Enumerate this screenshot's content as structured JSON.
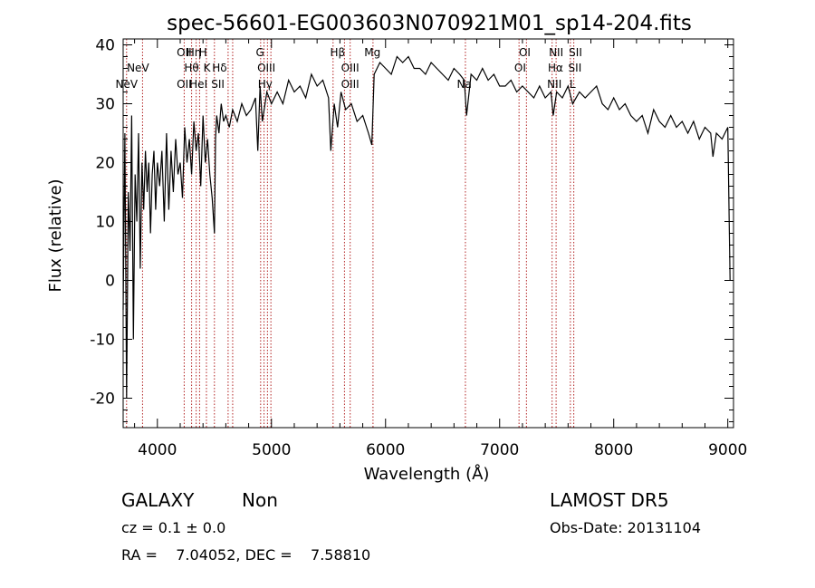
{
  "chart_data": {
    "type": "line",
    "title": "spec-56601-EG003603N070921M01_sp14-204.fits",
    "xlabel": "Wavelength (Å)",
    "ylabel": "Flux (relative)",
    "xlim": [
      3700,
      9050
    ],
    "ylim": [
      -25,
      41
    ],
    "xticks": [
      4000,
      5000,
      6000,
      7000,
      8000,
      9000
    ],
    "yticks": [
      -20,
      -10,
      0,
      10,
      20,
      30,
      40
    ],
    "grid": false,
    "legend": "none",
    "series": [
      {
        "name": "",
        "x": [
          3700,
          3715,
          3730,
          3745,
          3760,
          3775,
          3790,
          3805,
          3820,
          3835,
          3850,
          3865,
          3880,
          3895,
          3910,
          3925,
          3940,
          3955,
          3970,
          3985,
          4000,
          4020,
          4040,
          4060,
          4080,
          4100,
          4120,
          4140,
          4160,
          4180,
          4200,
          4220,
          4240,
          4260,
          4280,
          4300,
          4320,
          4340,
          4360,
          4380,
          4400,
          4420,
          4440,
          4460,
          4480,
          4500,
          4510,
          4520,
          4540,
          4560,
          4580,
          4600,
          4630,
          4660,
          4700,
          4740,
          4780,
          4820,
          4860,
          4880,
          4900,
          4920,
          4960,
          5000,
          5050,
          5100,
          5150,
          5200,
          5250,
          5300,
          5350,
          5400,
          5450,
          5500,
          5520,
          5550,
          5580,
          5610,
          5650,
          5700,
          5750,
          5800,
          5850,
          5880,
          5900,
          5950,
          6000,
          6050,
          6100,
          6150,
          6200,
          6250,
          6300,
          6350,
          6400,
          6450,
          6500,
          6550,
          6600,
          6650,
          6690,
          6710,
          6750,
          6800,
          6850,
          6900,
          6950,
          7000,
          7050,
          7100,
          7150,
          7200,
          7250,
          7300,
          7350,
          7400,
          7450,
          7470,
          7500,
          7550,
          7600,
          7640,
          7700,
          7750,
          7800,
          7850,
          7900,
          7950,
          8000,
          8050,
          8100,
          8150,
          8200,
          8250,
          8300,
          8350,
          8400,
          8450,
          8500,
          8550,
          8600,
          8650,
          8700,
          8750,
          8800,
          8850,
          8870,
          8900,
          8950,
          9000,
          9020
        ],
        "values": [
          -5,
          25,
          -20,
          15,
          5,
          28,
          -10,
          18,
          10,
          25,
          2,
          20,
          12,
          22,
          15,
          20,
          8,
          18,
          22,
          12,
          20,
          16,
          22,
          10,
          25,
          12,
          22,
          15,
          24,
          18,
          20,
          14,
          26,
          20,
          24,
          18,
          27,
          22,
          25,
          16,
          28,
          20,
          24,
          18,
          14,
          8,
          24,
          28,
          25,
          30,
          27,
          28,
          26,
          29,
          27,
          30,
          28,
          29,
          31,
          22,
          33,
          27,
          32,
          30,
          32,
          30,
          34,
          32,
          33,
          31,
          35,
          33,
          34,
          31,
          22,
          30,
          26,
          32,
          29,
          30,
          27,
          28,
          25,
          23,
          35,
          37,
          36,
          35,
          38,
          37,
          38,
          36,
          36,
          35,
          37,
          36,
          35,
          34,
          36,
          35,
          34,
          28,
          35,
          34,
          36,
          34,
          35,
          33,
          33,
          34,
          32,
          33,
          32,
          31,
          33,
          31,
          32,
          28,
          32,
          31,
          33,
          30,
          32,
          31,
          32,
          33,
          30,
          29,
          31,
          29,
          30,
          28,
          27,
          28,
          25,
          29,
          27,
          26,
          28,
          26,
          27,
          25,
          27,
          24,
          26,
          25,
          21,
          25,
          24,
          26,
          0
        ]
      }
    ],
    "line_labels": [
      {
        "text": "NeV",
        "x": 3830,
        "row": 2
      },
      {
        "text": "NeV",
        "x": 3730,
        "row": 3
      },
      {
        "text": "OII",
        "x": 4235,
        "row": 1
      },
      {
        "text": "Hη",
        "x": 4320,
        "row": 1
      },
      {
        "text": "H",
        "x": 4400,
        "row": 1
      },
      {
        "text": "Hθ",
        "x": 4300,
        "row": 2
      },
      {
        "text": "K",
        "x": 4435,
        "row": 2
      },
      {
        "text": "Hδ",
        "x": 4545,
        "row": 2
      },
      {
        "text": "OII",
        "x": 4235,
        "row": 3
      },
      {
        "text": "HeI",
        "x": 4360,
        "row": 3
      },
      {
        "text": "SII",
        "x": 4530,
        "row": 3
      },
      {
        "text": "G",
        "x": 4900,
        "row": 1
      },
      {
        "text": "OIII",
        "x": 4955,
        "row": 2
      },
      {
        "text": "Hγ",
        "x": 4945,
        "row": 3
      },
      {
        "text": "Hβ",
        "x": 5580,
        "row": 1
      },
      {
        "text": "OIII",
        "x": 5690,
        "row": 2
      },
      {
        "text": "OIII",
        "x": 5690,
        "row": 3
      },
      {
        "text": "Mg",
        "x": 5885,
        "row": 1
      },
      {
        "text": "Na",
        "x": 6690,
        "row": 3
      },
      {
        "text": "OI",
        "x": 7220,
        "row": 1
      },
      {
        "text": "OI",
        "x": 7180,
        "row": 2
      },
      {
        "text": "NII",
        "x": 7495,
        "row": 1
      },
      {
        "text": "SII",
        "x": 7665,
        "row": 1
      },
      {
        "text": "Hα",
        "x": 7490,
        "row": 2
      },
      {
        "text": "SII",
        "x": 7660,
        "row": 2
      },
      {
        "text": "NII",
        "x": 7480,
        "row": 3
      },
      {
        "text": "L",
        "x": 7640,
        "row": 3
      }
    ],
    "line_markers": [
      3730,
      3870,
      4235,
      4300,
      4340,
      4370,
      4430,
      4500,
      4620,
      4660,
      4905,
      4935,
      4965,
      4995,
      5540,
      5640,
      5690,
      5890,
      6700,
      7170,
      7235,
      7460,
      7495,
      7620,
      7650
    ],
    "colors": {
      "spectrum": "#000000",
      "markers": "#b22222"
    }
  },
  "info": {
    "class_label": "GALAXY",
    "subclass_label": "Non",
    "survey_label": "LAMOST DR5",
    "cz_text": "cz = 0.1 ± 0.0",
    "obs_date_text": "Obs-Date: 20131104",
    "radec_text": "RA =    7.04052, DEC =    7.58810"
  }
}
